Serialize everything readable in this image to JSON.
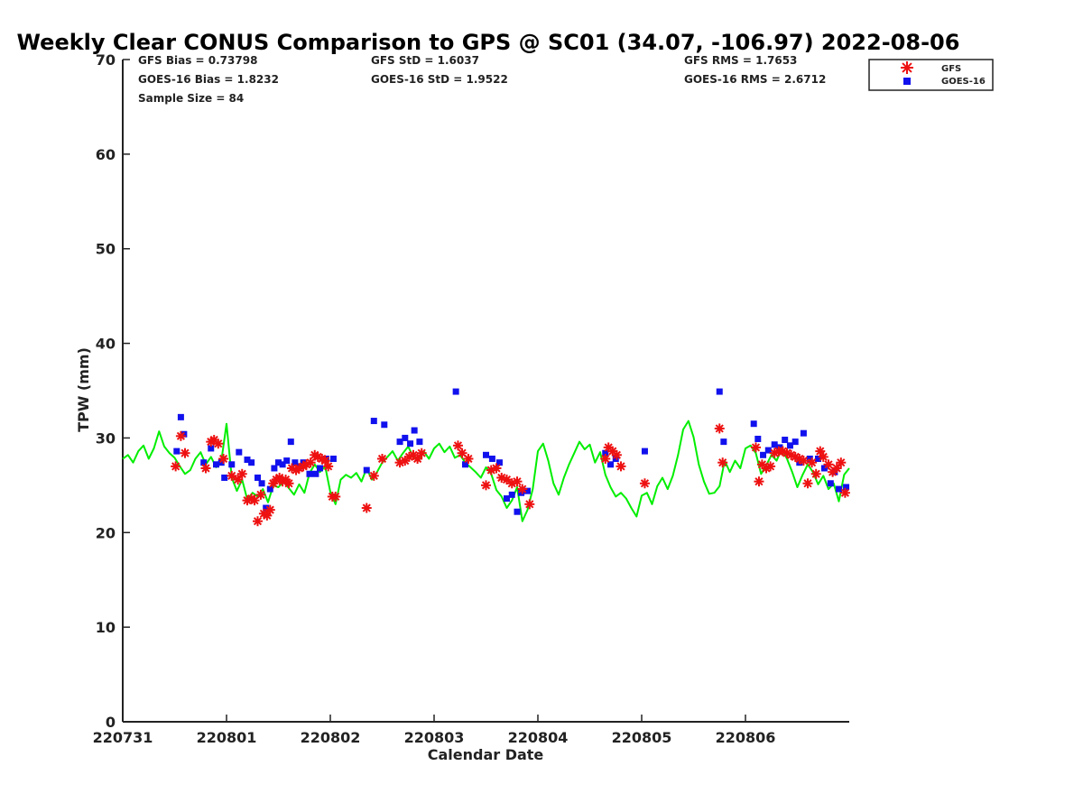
{
  "chart_data": {
    "type": "scatter",
    "title": "Weekly Clear CONUS Comparison to GPS @ SC01 (34.07, -106.97) 2022-08-06",
    "xlabel": "Calendar Date",
    "ylabel": "TPW (mm)",
    "xlim": [
      0,
      7.0
    ],
    "ylim": [
      0,
      70
    ],
    "xticks": [
      {
        "x": 0,
        "label": "220731"
      },
      {
        "x": 1,
        "label": "220801"
      },
      {
        "x": 2,
        "label": "220802"
      },
      {
        "x": 3,
        "label": "220803"
      },
      {
        "x": 4,
        "label": "220804"
      },
      {
        "x": 5,
        "label": "220805"
      },
      {
        "x": 6,
        "label": "220806"
      }
    ],
    "yticks": [
      0,
      10,
      20,
      30,
      40,
      50,
      60,
      70
    ],
    "grid": false,
    "legend_position": "top-right",
    "stats": {
      "gfs_bias": "GFS Bias = 0.73798",
      "goes_bias": "GOES-16 Bias = 1.8232",
      "sample_size": "Sample Size = 84",
      "gfs_std": "GFS StD = 1.6037",
      "goes_std": "GOES-16 StD = 1.9522",
      "gfs_rms": "GFS RMS = 1.7653",
      "goes_rms": "GOES-16 RMS = 2.6712"
    },
    "series": [
      {
        "name": "GPS",
        "style": "line",
        "color": "#00ee00",
        "x": [
          0.0,
          0.05,
          0.1,
          0.15,
          0.2,
          0.25,
          0.3,
          0.35,
          0.4,
          0.45,
          0.5,
          0.55,
          0.6,
          0.65,
          0.7,
          0.75,
          0.8,
          0.85,
          0.9,
          0.95,
          1.0,
          1.05,
          1.1,
          1.15,
          1.2,
          1.25,
          1.3,
          1.35,
          1.4,
          1.45,
          1.5,
          1.55,
          1.6,
          1.65,
          1.7,
          1.75,
          1.8,
          1.85,
          1.9,
          1.95,
          2.0,
          2.05,
          2.1,
          2.15,
          2.2,
          2.25,
          2.3,
          2.35,
          2.4,
          2.45,
          2.5,
          2.55,
          2.6,
          2.65,
          2.7,
          2.75,
          2.8,
          2.85,
          2.9,
          2.95,
          3.0,
          3.05,
          3.1,
          3.15,
          3.2,
          3.25,
          3.3,
          3.35,
          3.4,
          3.45,
          3.5,
          3.55,
          3.6,
          3.65,
          3.7,
          3.75,
          3.8,
          3.85,
          3.9,
          3.95,
          4.0,
          4.05,
          4.1,
          4.15,
          4.2,
          4.25,
          4.3,
          4.35,
          4.4,
          4.45,
          4.5,
          4.55,
          4.6,
          4.65,
          4.7,
          4.75,
          4.8,
          4.85,
          4.9,
          4.95,
          5.0,
          5.05,
          5.1,
          5.15,
          5.2,
          5.25,
          5.3,
          5.35,
          5.4,
          5.45,
          5.5,
          5.55,
          5.6,
          5.65,
          5.7,
          5.75,
          5.8,
          5.85,
          5.9,
          5.95,
          6.0,
          6.05,
          6.1,
          6.15,
          6.2,
          6.25,
          6.3,
          6.35,
          6.4,
          6.45,
          6.5,
          6.55,
          6.6,
          6.65,
          6.7,
          6.75,
          6.8,
          6.85,
          6.9,
          6.95,
          7.0
        ],
        "values": [
          27.8,
          28.2,
          27.4,
          28.6,
          29.2,
          27.8,
          28.9,
          30.7,
          29.1,
          28.4,
          27.9,
          27.0,
          26.2,
          26.6,
          27.8,
          28.5,
          27.2,
          28.0,
          26.9,
          27.6,
          31.5,
          25.8,
          24.4,
          25.6,
          23.5,
          24.2,
          23.8,
          24.6,
          23.2,
          25.0,
          24.8,
          25.4,
          24.7,
          24.0,
          25.1,
          24.2,
          26.3,
          27.2,
          26.4,
          27.0,
          24.3,
          23.0,
          25.6,
          26.1,
          25.8,
          26.3,
          25.4,
          26.8,
          25.6,
          26.4,
          27.4,
          28.0,
          28.6,
          27.6,
          28.4,
          29.1,
          28.0,
          27.6,
          28.6,
          27.8,
          28.9,
          29.4,
          28.5,
          29.1,
          27.9,
          28.2,
          27.4,
          26.9,
          26.4,
          25.8,
          26.9,
          26.2,
          24.5,
          23.8,
          22.6,
          23.4,
          24.8,
          21.2,
          22.4,
          24.6,
          28.6,
          29.4,
          27.6,
          25.2,
          24.0,
          25.8,
          27.2,
          28.4,
          29.6,
          28.8,
          29.3,
          27.4,
          28.5,
          26.1,
          24.8,
          23.8,
          24.2,
          23.6,
          22.6,
          21.7,
          23.9,
          24.2,
          23.0,
          24.9,
          25.8,
          24.6,
          26.0,
          28.2,
          30.9,
          31.8,
          30.1,
          27.2,
          25.4,
          24.1,
          24.2,
          24.9,
          27.6,
          26.4,
          27.6,
          26.8,
          28.9,
          29.2,
          28.4,
          26.2,
          27.1,
          28.2,
          27.6,
          28.9,
          27.8,
          26.4,
          24.8,
          26.1,
          27.2,
          26.4,
          25.1,
          26.0,
          24.6,
          25.2,
          23.3,
          26.1,
          26.8
        ]
      },
      {
        "name": "GFS",
        "style": "asterisk",
        "color": "#ee1111",
        "x": [
          0.51,
          0.56,
          0.6,
          0.8,
          0.85,
          0.88,
          0.92,
          0.97,
          1.05,
          1.11,
          1.15,
          1.2,
          1.24,
          1.27,
          1.3,
          1.33,
          1.36,
          1.39,
          1.42,
          1.45,
          1.48,
          1.51,
          1.54,
          1.57,
          1.6,
          1.63,
          1.67,
          1.7,
          1.74,
          1.77,
          1.81,
          1.85,
          1.88,
          1.92,
          1.95,
          1.98,
          2.02,
          2.05,
          2.35,
          2.42,
          2.5,
          2.67,
          2.72,
          2.76,
          2.8,
          2.84,
          2.88,
          3.23,
          3.27,
          3.33,
          3.5,
          3.55,
          3.6,
          3.65,
          3.7,
          3.75,
          3.8,
          3.85,
          3.92,
          4.65,
          4.68,
          4.72,
          4.76,
          4.8,
          5.03,
          5.75,
          5.78,
          6.1,
          6.13,
          6.16,
          6.2,
          6.24,
          6.28,
          6.32,
          6.36,
          6.4,
          6.44,
          6.48,
          6.52,
          6.56,
          6.6,
          6.64,
          6.68,
          6.72,
          6.75,
          6.8,
          6.84,
          6.88,
          6.92,
          6.96
        ],
        "values": [
          27.0,
          30.2,
          28.4,
          26.8,
          29.6,
          29.8,
          29.4,
          27.8,
          26.0,
          25.6,
          26.2,
          23.4,
          23.6,
          23.4,
          21.2,
          24.0,
          22.0,
          21.8,
          22.4,
          25.2,
          25.6,
          25.8,
          25.4,
          25.6,
          25.2,
          26.8,
          26.6,
          26.8,
          27.0,
          27.2,
          27.4,
          28.2,
          28.0,
          27.8,
          27.6,
          27.0,
          23.8,
          23.8,
          22.6,
          26.0,
          27.8,
          27.4,
          27.6,
          28.0,
          28.2,
          27.8,
          28.4,
          29.2,
          28.4,
          27.8,
          25.0,
          26.6,
          26.8,
          25.8,
          25.6,
          25.2,
          25.4,
          24.6,
          23.0,
          27.8,
          29.0,
          28.6,
          28.2,
          27.0,
          25.2,
          31.0,
          27.4,
          29.0,
          25.4,
          27.2,
          26.8,
          27.0,
          28.4,
          28.6,
          28.6,
          28.4,
          28.2,
          28.0,
          27.8,
          27.6,
          25.2,
          27.4,
          26.2,
          28.6,
          28.0,
          27.2,
          26.4,
          26.8,
          27.4,
          24.2
        ]
      },
      {
        "name": "GOES-16",
        "style": "square",
        "color": "#1111ee",
        "x": [
          0.52,
          0.56,
          0.59,
          0.78,
          0.85,
          0.9,
          0.95,
          0.98,
          1.05,
          1.12,
          1.2,
          1.24,
          1.3,
          1.34,
          1.38,
          1.42,
          1.46,
          1.5,
          1.54,
          1.58,
          1.62,
          1.66,
          1.7,
          1.74,
          1.8,
          1.86,
          1.9,
          1.96,
          2.03,
          2.35,
          2.42,
          2.52,
          2.67,
          2.72,
          2.77,
          2.81,
          2.86,
          3.21,
          3.3,
          3.5,
          3.56,
          3.63,
          3.7,
          3.75,
          3.8,
          3.84,
          3.9,
          4.65,
          4.7,
          4.75,
          5.03,
          5.75,
          5.79,
          6.08,
          6.12,
          6.17,
          6.22,
          6.28,
          6.33,
          6.38,
          6.43,
          6.48,
          6.52,
          6.56,
          6.62,
          6.7,
          6.76,
          6.82,
          6.86,
          6.9,
          6.97
        ],
        "values": [
          28.6,
          32.2,
          30.4,
          27.4,
          28.9,
          27.2,
          27.4,
          25.8,
          27.2,
          28.5,
          27.7,
          27.4,
          25.8,
          25.2,
          22.6,
          24.6,
          26.8,
          27.4,
          27.2,
          27.6,
          29.6,
          27.4,
          27.0,
          27.4,
          26.2,
          26.2,
          26.8,
          27.8,
          27.8,
          26.6,
          31.8,
          31.4,
          29.6,
          30.0,
          29.4,
          30.8,
          29.6,
          34.9,
          27.2,
          28.2,
          27.8,
          27.4,
          23.6,
          24.0,
          22.2,
          24.2,
          24.4,
          28.4,
          27.2,
          27.8,
          28.6,
          34.9,
          29.6,
          31.5,
          29.9,
          28.2,
          28.7,
          29.3,
          29.0,
          29.8,
          29.2,
          29.6,
          27.4,
          30.5,
          27.8,
          27.8,
          26.8,
          25.2,
          26.4,
          24.6,
          24.8
        ]
      }
    ]
  }
}
